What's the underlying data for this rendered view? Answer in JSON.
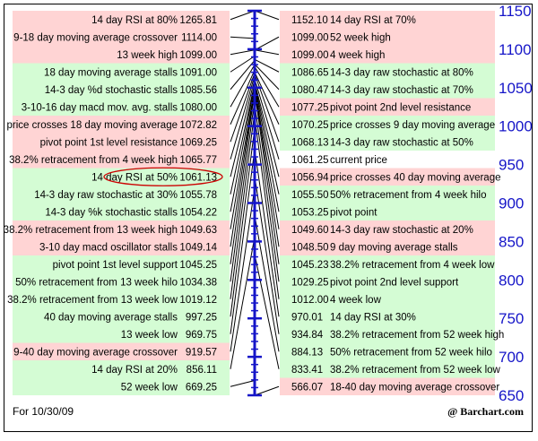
{
  "footer": {
    "date": "For 10/30/09",
    "brand": "@ Barchart.com"
  },
  "colors": {
    "resistance": "#ffd4d4",
    "support": "#d4fcd4",
    "neutral": "#ffffff",
    "axis": "#1515c8",
    "highlight": "#cc0000"
  },
  "chart_data": {
    "type": "table",
    "title": "",
    "current_price": 1061.25,
    "ylim": [
      650,
      1150
    ],
    "y_ticks": [
      650,
      700,
      750,
      800,
      850,
      900,
      950,
      1000,
      1050,
      1100,
      1150
    ],
    "highlighted": "14 day RSI at 50%",
    "left": [
      {
        "label": "14 day RSI at 80%",
        "value": "1265.81",
        "zone": "resistance"
      },
      {
        "label": "9-18 day moving average crossover",
        "value": "1114.00",
        "zone": "resistance"
      },
      {
        "label": "13 week high",
        "value": "1099.00",
        "zone": "resistance"
      },
      {
        "label": "18 day moving average stalls",
        "value": "1091.00",
        "zone": "support"
      },
      {
        "label": "14-3 day %d stochastic stalls",
        "value": "1085.56",
        "zone": "support"
      },
      {
        "label": "3-10-16 day macd mov. avg. stalls",
        "value": "1080.00",
        "zone": "support"
      },
      {
        "label": "price crosses 18 day moving average",
        "value": "1072.82",
        "zone": "resistance"
      },
      {
        "label": "pivot point 1st level resistance",
        "value": "1069.25",
        "zone": "resistance"
      },
      {
        "label": "38.2% retracement from 4 week high",
        "value": "1065.77",
        "zone": "resistance"
      },
      {
        "label": "14 day RSI at 50%",
        "value": "1061.13",
        "zone": "support"
      },
      {
        "label": "14-3 day raw stochastic at 30%",
        "value": "1055.78",
        "zone": "support"
      },
      {
        "label": "14-3 day %k stochastic stalls",
        "value": "1054.22",
        "zone": "support"
      },
      {
        "label": "38.2% retracement from 13 week high",
        "value": "1049.63",
        "zone": "resistance"
      },
      {
        "label": "3-10 day macd oscillator stalls",
        "value": "1049.14",
        "zone": "resistance"
      },
      {
        "label": "pivot point 1st level support",
        "value": "1045.25",
        "zone": "support"
      },
      {
        "label": "50% retracement from 13 week hilo",
        "value": "1034.38",
        "zone": "support"
      },
      {
        "label": "38.2% retracement from 13 week low",
        "value": "1019.12",
        "zone": "support"
      },
      {
        "label": "40 day moving average stalls",
        "value": "997.25",
        "zone": "support"
      },
      {
        "label": "13 week low",
        "value": "969.75",
        "zone": "support"
      },
      {
        "label": "9-40 day moving average crossover",
        "value": "919.57",
        "zone": "resistance"
      },
      {
        "label": "14 day RSI at 20%",
        "value": "856.11",
        "zone": "support"
      },
      {
        "label": "52 week low",
        "value": "669.25",
        "zone": "support"
      }
    ],
    "right": [
      {
        "label": "14 day RSI at 70%",
        "value": "1152.10",
        "zone": "resistance"
      },
      {
        "label": "52 week high",
        "value": "1099.00",
        "zone": "resistance"
      },
      {
        "label": "4 week high",
        "value": "1099.00",
        "zone": "resistance"
      },
      {
        "label": "14-3 day raw stochastic at 80%",
        "value": "1086.65",
        "zone": "support"
      },
      {
        "label": "14-3 day raw stochastic at 70%",
        "value": "1080.47",
        "zone": "support"
      },
      {
        "label": "pivot point 2nd level resistance",
        "value": "1077.25",
        "zone": "resistance"
      },
      {
        "label": "price crosses 9 day moving average",
        "value": "1070.25",
        "zone": "support"
      },
      {
        "label": "14-3 day raw stochastic at 50%",
        "value": "1068.13",
        "zone": "support"
      },
      {
        "label": "current price",
        "value": "1061.25",
        "zone": "neutral"
      },
      {
        "label": "price crosses 40 day moving average",
        "value": "1056.94",
        "zone": "resistance"
      },
      {
        "label": "50% retracement from 4 week hilo",
        "value": "1055.50",
        "zone": "support"
      },
      {
        "label": "pivot point",
        "value": "1053.25",
        "zone": "support"
      },
      {
        "label": "14-3 day raw stochastic at 20%",
        "value": "1049.60",
        "zone": "resistance"
      },
      {
        "label": "9 day moving average stalls",
        "value": "1048.50",
        "zone": "resistance"
      },
      {
        "label": "38.2% retracement from 4 week low",
        "value": "1045.23",
        "zone": "support"
      },
      {
        "label": "pivot point 2nd level support",
        "value": "1029.25",
        "zone": "support"
      },
      {
        "label": "4 week low",
        "value": "1012.00",
        "zone": "support"
      },
      {
        "label": "14 day RSI at 30%",
        "value": "970.01",
        "zone": "support"
      },
      {
        "label": "38.2% retracement from 52 week high",
        "value": "934.84",
        "zone": "support"
      },
      {
        "label": "50% retracement from 52 week hilo",
        "value": "884.13",
        "zone": "support"
      },
      {
        "label": "38.2% retracement from 52 week low",
        "value": "833.41",
        "zone": "support"
      },
      {
        "label": "18-40 day moving average crossover",
        "value": "566.07",
        "zone": "resistance"
      }
    ]
  }
}
